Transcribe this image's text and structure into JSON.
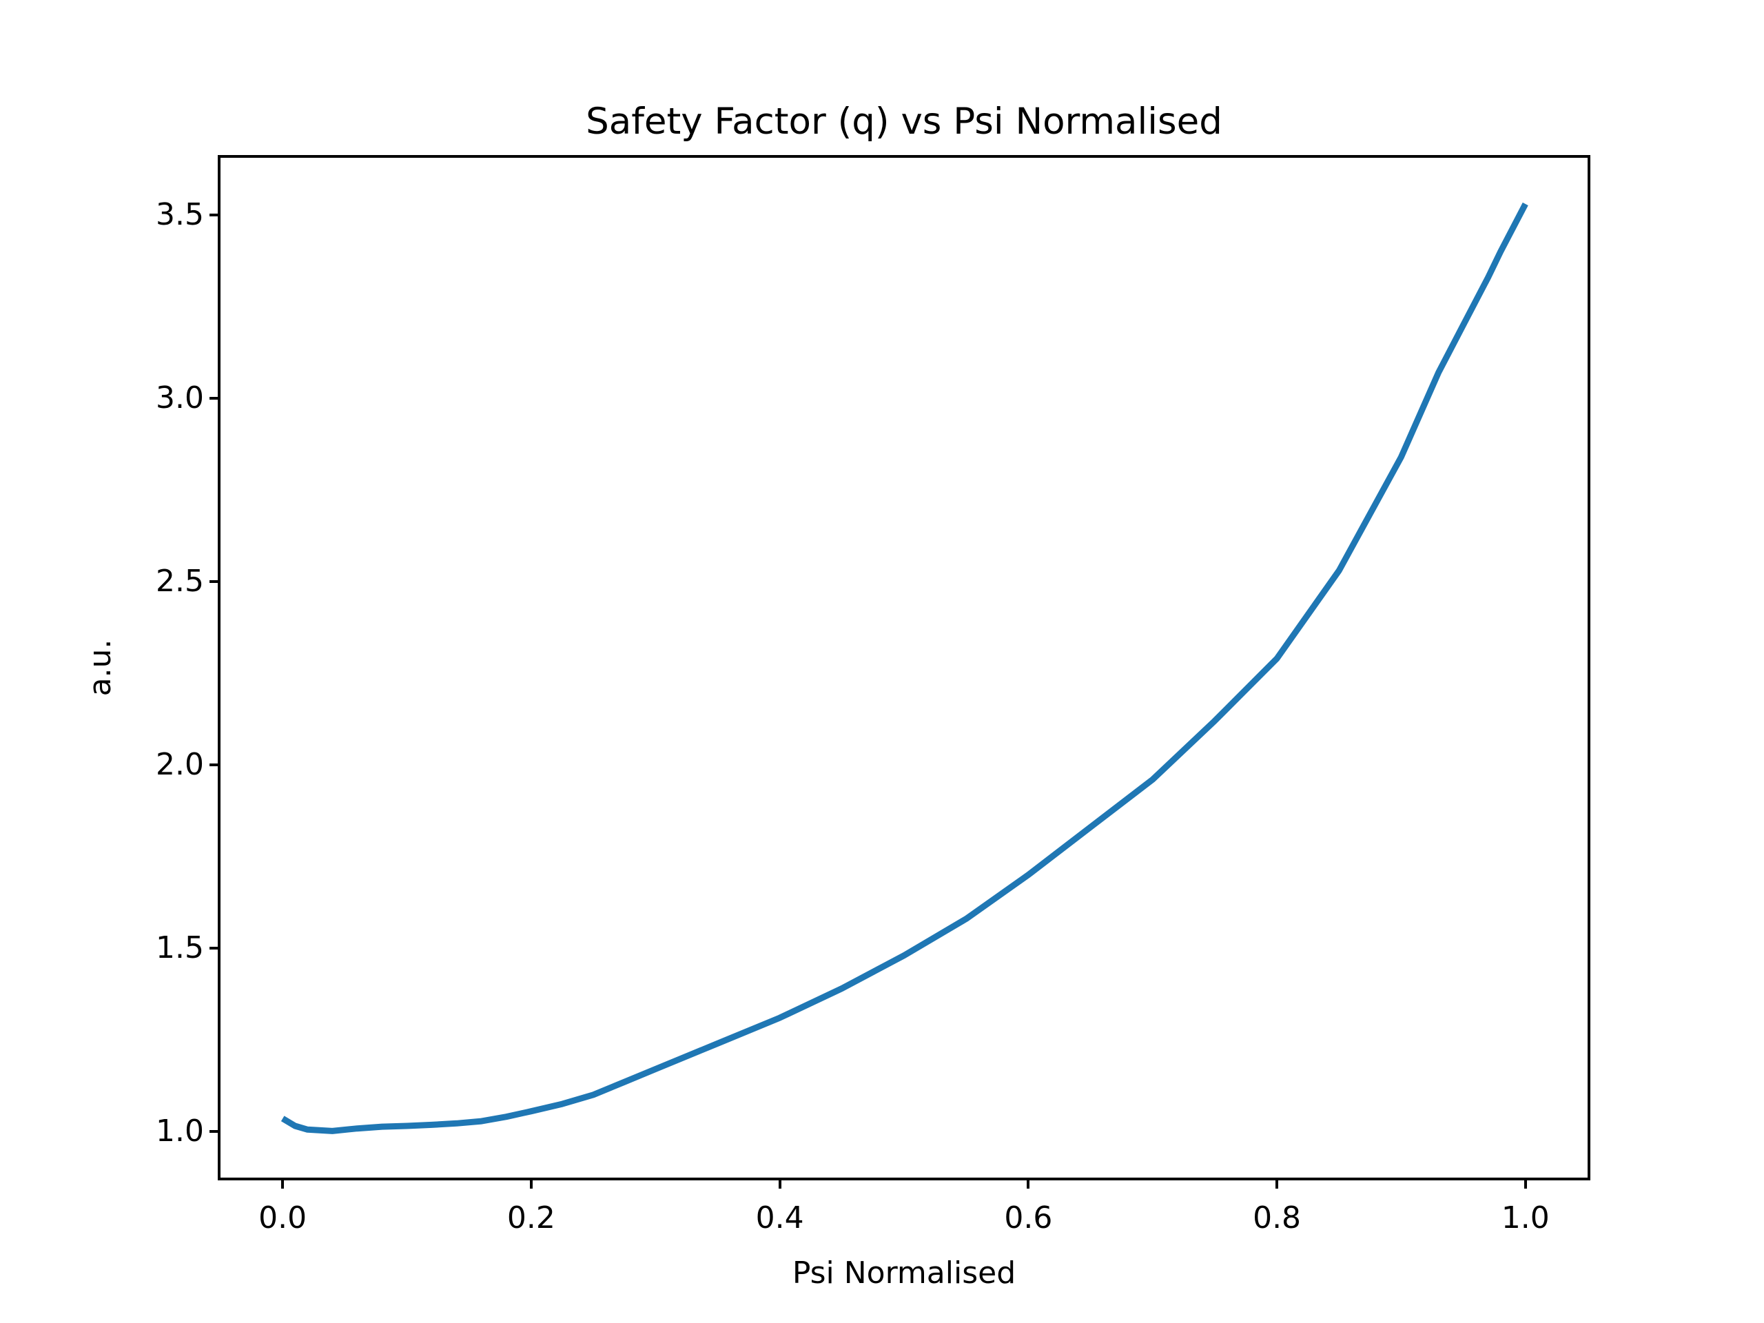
{
  "chart_data": {
    "type": "line",
    "title": "Safety Factor (q) vs Psi Normalised",
    "xlabel": "Psi Normalised",
    "ylabel": "a.u.",
    "x_tick_labels": [
      "0.0",
      "0.2",
      "0.4",
      "0.6",
      "0.8",
      "1.0"
    ],
    "x_tick_values": [
      0.0,
      0.2,
      0.4,
      0.6,
      0.8,
      1.0
    ],
    "y_tick_labels": [
      "1.0",
      "1.5",
      "2.0",
      "2.5",
      "3.0",
      "3.5"
    ],
    "y_tick_values": [
      1.0,
      1.5,
      2.0,
      2.5,
      3.0,
      3.5
    ],
    "xlim": [
      -0.05,
      1.05
    ],
    "ylim": [
      0.874,
      3.656
    ],
    "grid": false,
    "legend": "none",
    "line_color": "#1f77b4",
    "line_width": 9,
    "series": [
      {
        "name": "Safety Factor q",
        "x": [
          0.0,
          0.01,
          0.02,
          0.04,
          0.06,
          0.08,
          0.1,
          0.12,
          0.14,
          0.16,
          0.18,
          0.2,
          0.225,
          0.25,
          0.275,
          0.3,
          0.35,
          0.4,
          0.45,
          0.5,
          0.55,
          0.6,
          0.65,
          0.7,
          0.75,
          0.8,
          0.85,
          0.9,
          0.93,
          0.95,
          0.97,
          0.98,
          1.0
        ],
        "y": [
          1.035,
          1.015,
          1.005,
          1.001,
          1.008,
          1.013,
          1.015,
          1.018,
          1.022,
          1.028,
          1.04,
          1.055,
          1.075,
          1.1,
          1.135,
          1.17,
          1.24,
          1.31,
          1.39,
          1.48,
          1.58,
          1.7,
          1.83,
          1.96,
          2.12,
          2.29,
          2.53,
          2.84,
          3.07,
          3.2,
          3.33,
          3.4,
          3.53
        ]
      }
    ]
  }
}
